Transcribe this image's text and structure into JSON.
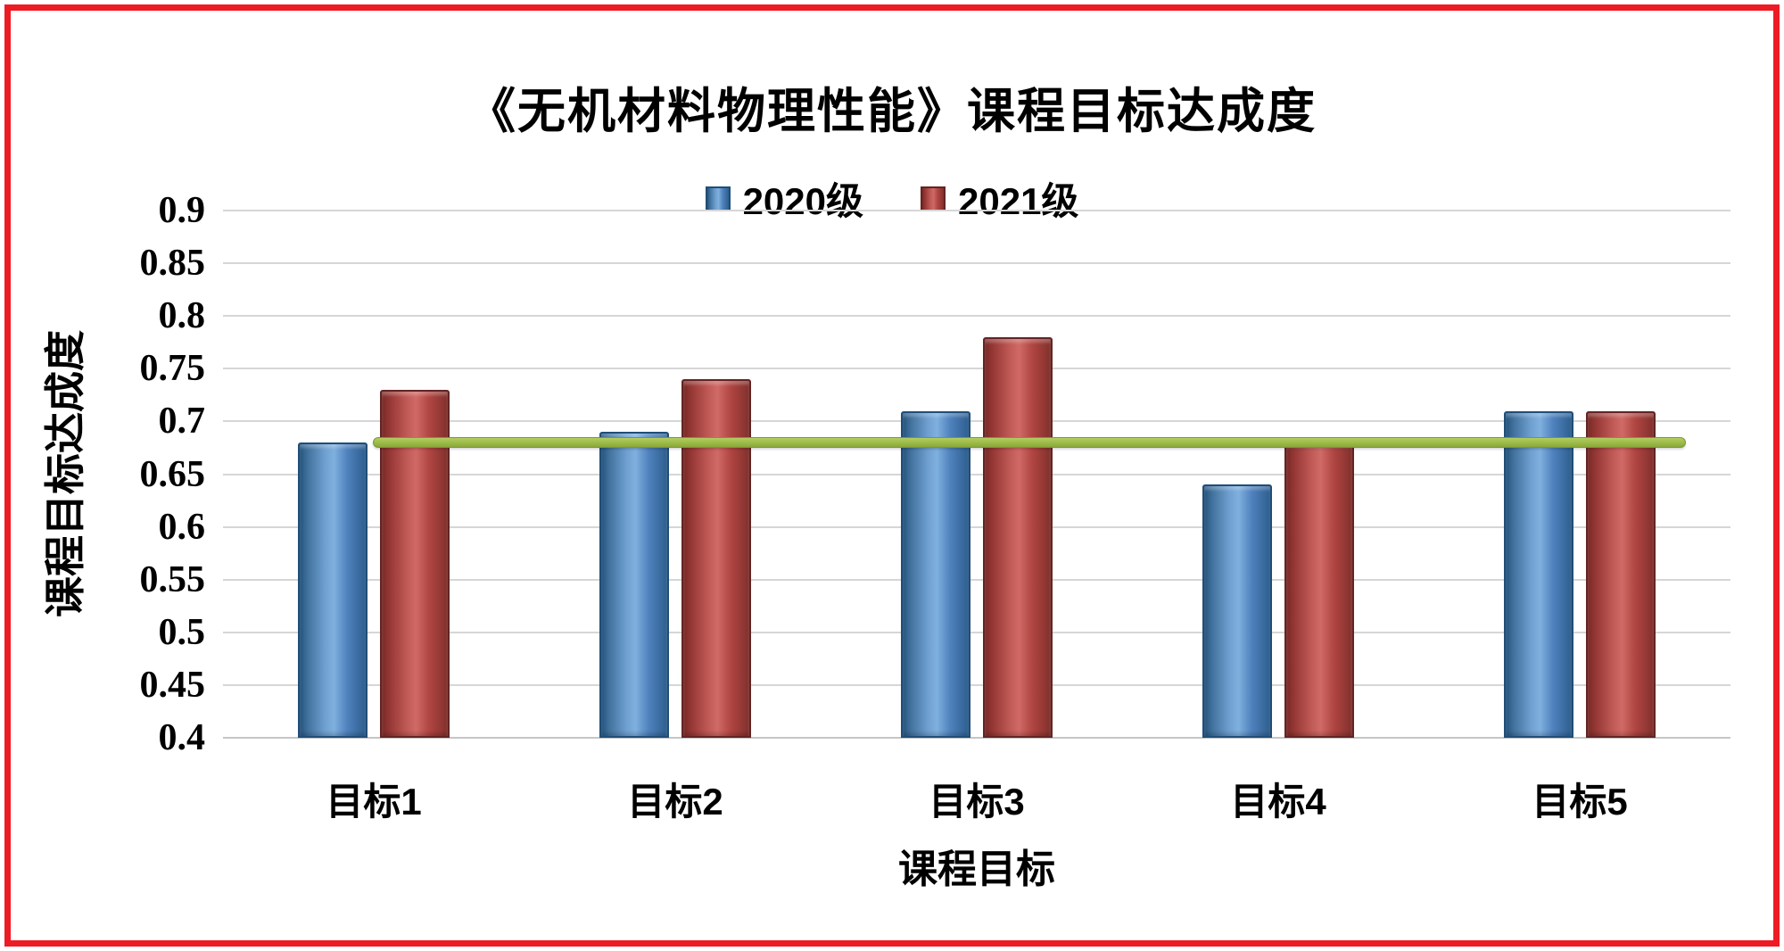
{
  "chart_data": {
    "type": "bar",
    "title": "《无机材料物理性能》课程目标达成度",
    "xlabel": "课程目标",
    "ylabel": "课程目标达成度",
    "categories": [
      "目标1",
      "目标2",
      "目标3",
      "目标4",
      "目标5"
    ],
    "series": [
      {
        "name": "2020级",
        "color": "#4F81BD",
        "values": [
          0.68,
          0.69,
          0.71,
          0.64,
          0.71
        ]
      },
      {
        "name": "2021级",
        "color": "#C0504D",
        "values": [
          0.73,
          0.74,
          0.78,
          0.68,
          0.71
        ]
      }
    ],
    "threshold_line": {
      "value": 0.68,
      "color": "#9BBB59"
    },
    "ylim": [
      0.4,
      0.9
    ],
    "ytick_step": 0.05,
    "yticks": [
      "0.9",
      "0.85",
      "0.8",
      "0.75",
      "0.7",
      "0.65",
      "0.6",
      "0.55",
      "0.5",
      "0.45",
      "0.4"
    ],
    "grid": true,
    "legend_position": "top"
  },
  "colors": {
    "frame": "#ED1C24",
    "gridline": "#D6D6D6",
    "background": "#FFFFFF",
    "series_blue": "#4F81BD",
    "series_red": "#C0504D",
    "threshold_green": "#9BBB59"
  }
}
